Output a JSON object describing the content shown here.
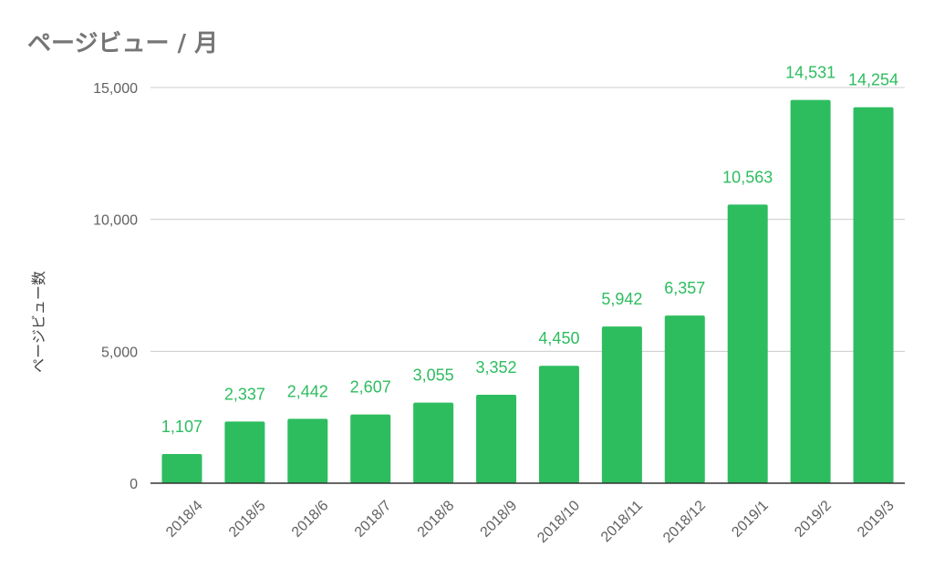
{
  "chart_data": {
    "type": "bar",
    "title": "ページビュー / 月",
    "xlabel": "",
    "ylabel": "ページビュー数",
    "categories": [
      "2018/4",
      "2018/5",
      "2018/6",
      "2018/7",
      "2018/8",
      "2018/9",
      "2018/10",
      "2018/11",
      "2018/12",
      "2019/1",
      "2019/2",
      "2019/3"
    ],
    "values": [
      1107,
      2337,
      2442,
      2607,
      3055,
      3352,
      4450,
      5942,
      6357,
      10563,
      14531,
      14254
    ],
    "value_labels": [
      "1,107",
      "2,337",
      "2,442",
      "2,607",
      "3,055",
      "3,352",
      "4,450",
      "5,942",
      "6,357",
      "10,563",
      "14,531",
      "14,254"
    ],
    "ylim": [
      0,
      15000
    ],
    "yticks": [
      0,
      5000,
      10000,
      15000
    ],
    "ytick_labels": [
      "0",
      "5,000",
      "10,000",
      "15,000"
    ],
    "grid": true,
    "legend": "none",
    "colors": {
      "bar": "#2dbd5f",
      "data_label": "#2dbd5f",
      "grid": "#cccccc",
      "axis": "#333333",
      "title": "#757575"
    }
  }
}
